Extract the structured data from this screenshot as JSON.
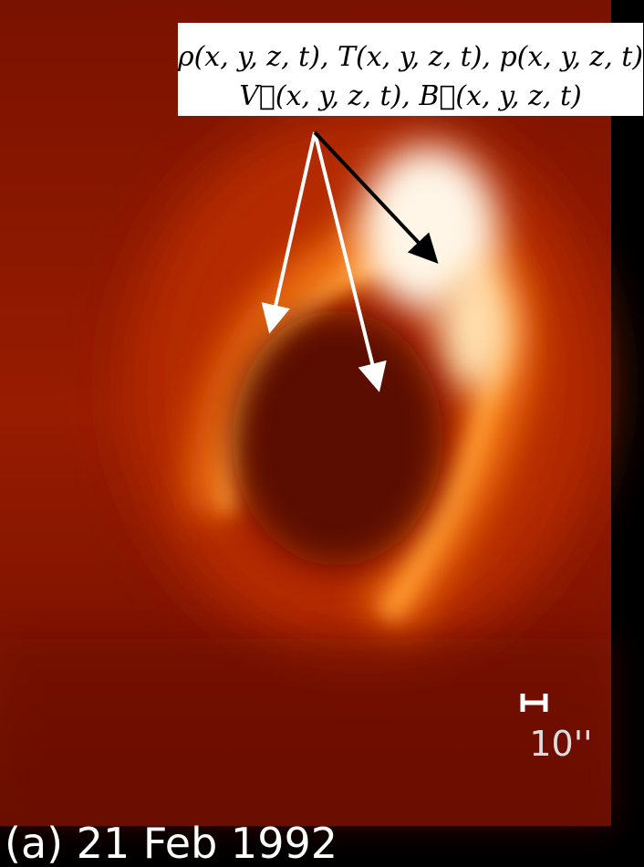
{
  "annotation": {
    "line1": "ρ(x, y, z, t), T(x, y, z, t), p(x, y, z, t)",
    "line2": "V⃗(x, y, z, t), B⃗(x, y, z, t)"
  },
  "scale_bar": {
    "label": "10''"
  },
  "caption": "(a) 21 Feb 1992"
}
